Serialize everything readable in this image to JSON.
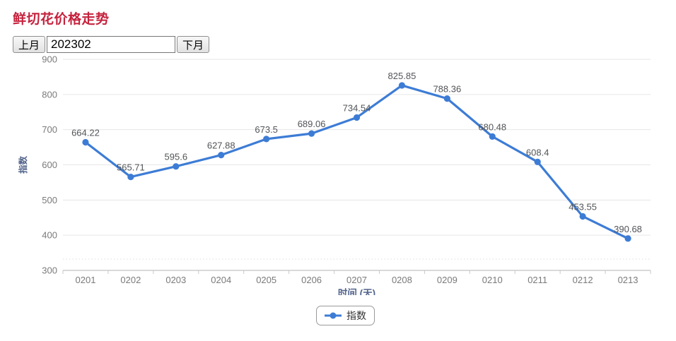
{
  "page_title": "鲜切花价格走势",
  "controls": {
    "prev_month_label": "上月",
    "month_input_value": "202302",
    "next_month_label": "下月"
  },
  "chart_data": {
    "type": "line",
    "categories": [
      "0201",
      "0202",
      "0203",
      "0204",
      "0205",
      "0206",
      "0207",
      "0208",
      "0209",
      "0210",
      "0211",
      "0212",
      "0213"
    ],
    "series": [
      {
        "name": "指数",
        "values": [
          664.22,
          565.71,
          595.6,
          627.88,
          673.5,
          689.06,
          734.54,
          825.85,
          788.36,
          680.48,
          608.4,
          453.55,
          390.68
        ]
      }
    ],
    "title": "",
    "xlabel": "时间 (天)",
    "ylabel": "指数",
    "ylim": [
      300,
      900
    ],
    "ytick_step": 100,
    "grid": true,
    "show_point_labels": true,
    "legend_position": "bottom",
    "legend_label": "指数"
  },
  "colors": {
    "title": "#c5223d",
    "series": "#3d7cd5",
    "grid": "#e6e6e6",
    "axis_line": "#b3b3b3",
    "tick": "#c9c9c9",
    "dotted_line": "#dedede",
    "tick_label": "#7a7a7a",
    "point_label": "#525457",
    "axis_title": "#53648c",
    "legend_text": "#333333"
  }
}
